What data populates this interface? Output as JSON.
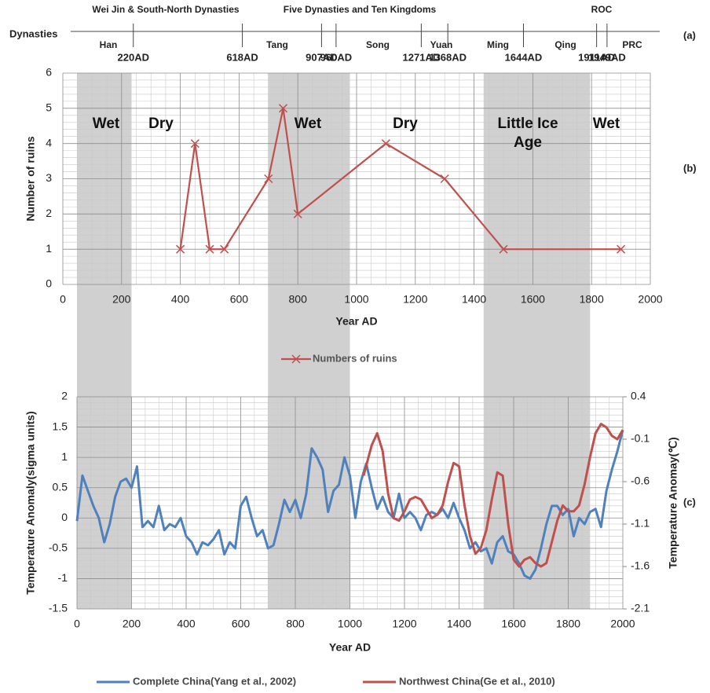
{
  "chart_data": [
    {
      "type": "timeline",
      "label": "Dynasties",
      "panel": "(a)",
      "xlim": [
        0,
        2150
      ],
      "xticks": [
        {
          "value": 220,
          "label": "220AD"
        },
        {
          "value": 618,
          "label": "618AD"
        },
        {
          "value": 907,
          "label": "907AD"
        },
        {
          "value": 960,
          "label": "960AD"
        },
        {
          "value": 1271,
          "label": "1271AD"
        },
        {
          "value": 1368,
          "label": "1368AD"
        },
        {
          "value": 1644,
          "label": "1644AD"
        },
        {
          "value": 1911,
          "label": "1911AD"
        },
        {
          "value": 1949,
          "label": "1949AD"
        }
      ],
      "above": [
        "Wei Jin & South-North Dynasties",
        "Five Dynasties and Ten Kingdoms",
        "ROC"
      ],
      "below": [
        "Han",
        "Tang",
        "Song",
        "Yuan",
        "Ming",
        "Qing",
        "PRC"
      ]
    },
    {
      "type": "line",
      "panel": "(b)",
      "x_label": "Year AD",
      "y_label": "Number of ruins",
      "xlim": [
        0,
        2000
      ],
      "xticks": [
        0,
        200,
        400,
        600,
        800,
        1000,
        1200,
        1400,
        1600,
        1800,
        2000
      ],
      "ylim": [
        0,
        6
      ],
      "yticks": [
        0,
        1,
        2,
        3,
        4,
        5,
        6
      ],
      "grid": true,
      "annotations": [
        "Wet",
        "Dry",
        "Wet",
        "Dry",
        "Little Ice Age",
        "Wet"
      ],
      "series": [
        {
          "name": "Numbers of ruins",
          "color": "#c0504d",
          "x": [
            400,
            450,
            500,
            550,
            700,
            750,
            800,
            1100,
            1300,
            1500,
            1900
          ],
          "values": [
            1,
            4,
            1,
            1,
            3,
            5,
            2,
            4,
            3,
            1,
            1
          ]
        }
      ]
    },
    {
      "type": "line",
      "panel": "(c)",
      "x_label": "Year AD",
      "y_label": "Temperature Anomaly(sigma units)",
      "y2_label": "Temperature Anomay(℃)",
      "xlim": [
        0,
        2000
      ],
      "xticks": [
        0,
        200,
        400,
        600,
        800,
        1000,
        1200,
        1400,
        1600,
        1800,
        2000
      ],
      "ylim": [
        -1.5,
        2
      ],
      "yticks": [
        -1.5,
        -1,
        -0.5,
        0,
        0.5,
        1,
        1.5,
        2
      ],
      "y2lim": [
        -2.1,
        0.4
      ],
      "y2ticks": [
        -2.1,
        -1.6,
        -1.1,
        -0.6,
        -0.1,
        0.4
      ],
      "grid": true,
      "shaded": [
        [
          0,
          200
        ],
        [
          700,
          1000
        ],
        [
          1490,
          1880
        ]
      ],
      "series": [
        {
          "name": "Complete China(Yang et al., 2002)",
          "color": "#4f81bd",
          "x": [
            0,
            20,
            40,
            60,
            80,
            100,
            120,
            140,
            160,
            180,
            200,
            220,
            240,
            260,
            280,
            300,
            320,
            340,
            360,
            380,
            400,
            420,
            440,
            460,
            480,
            500,
            520,
            540,
            560,
            580,
            600,
            620,
            640,
            660,
            680,
            700,
            720,
            740,
            760,
            780,
            800,
            820,
            840,
            860,
            880,
            900,
            920,
            940,
            960,
            980,
            1000,
            1020,
            1040,
            1060,
            1080,
            1100,
            1120,
            1140,
            1160,
            1180,
            1200,
            1220,
            1240,
            1260,
            1280,
            1300,
            1320,
            1340,
            1360,
            1380,
            1400,
            1420,
            1440,
            1460,
            1480,
            1500,
            1520,
            1540,
            1560,
            1580,
            1600,
            1620,
            1640,
            1660,
            1680,
            1700,
            1720,
            1740,
            1760,
            1780,
            1800,
            1820,
            1840,
            1860,
            1880,
            1900,
            1920,
            1940,
            1960,
            1980,
            2000
          ],
          "values": [
            -0.05,
            0.7,
            0.45,
            0.2,
            0.0,
            -0.4,
            -0.1,
            0.35,
            0.6,
            0.65,
            0.5,
            0.85,
            -0.15,
            -0.05,
            -0.15,
            0.2,
            -0.2,
            -0.1,
            -0.15,
            0.0,
            -0.3,
            -0.4,
            -0.6,
            -0.4,
            -0.45,
            -0.35,
            -0.2,
            -0.6,
            -0.4,
            -0.5,
            0.2,
            0.35,
            0.0,
            -0.3,
            -0.2,
            -0.5,
            -0.45,
            -0.1,
            0.3,
            0.1,
            0.3,
            0.0,
            0.4,
            1.15,
            1.0,
            0.8,
            0.1,
            0.45,
            0.55,
            1.0,
            0.7,
            0.0,
            0.6,
            0.9,
            0.5,
            0.15,
            0.35,
            0.1,
            0.0,
            0.4,
            0.0,
            0.1,
            0.0,
            -0.2,
            0.05,
            0.1,
            0.05,
            0.15,
            0.0,
            0.25,
            0.0,
            -0.2,
            -0.5,
            -0.4,
            -0.55,
            -0.5,
            -0.75,
            -0.4,
            -0.3,
            -0.55,
            -0.6,
            -0.75,
            -0.95,
            -1.0,
            -0.85,
            -0.5,
            -0.1,
            0.2,
            0.2,
            0.05,
            0.15,
            -0.3,
            0.0,
            -0.1,
            0.1,
            0.15,
            -0.15,
            0.45,
            0.8,
            1.1,
            1.45
          ]
        },
        {
          "name": "Northwest China(Ge et al., 2010)",
          "color": "#c0504d",
          "axis": "y2",
          "x": [
            1050,
            1080,
            1100,
            1120,
            1140,
            1160,
            1180,
            1200,
            1220,
            1240,
            1260,
            1280,
            1300,
            1320,
            1340,
            1360,
            1380,
            1400,
            1420,
            1440,
            1460,
            1480,
            1500,
            1520,
            1540,
            1560,
            1580,
            1600,
            1620,
            1640,
            1660,
            1680,
            1700,
            1720,
            1740,
            1760,
            1780,
            1800,
            1820,
            1840,
            1860,
            1880,
            1900,
            1920,
            1940,
            1960,
            1980,
            2000
          ],
          "values": [
            -0.53,
            -0.17,
            -0.03,
            -0.24,
            -0.74,
            -1.03,
            -1.06,
            -0.95,
            -0.81,
            -0.78,
            -0.81,
            -0.92,
            -1.03,
            -0.99,
            -0.88,
            -0.6,
            -0.38,
            -0.42,
            -0.88,
            -1.24,
            -1.45,
            -1.38,
            -1.17,
            -0.81,
            -0.49,
            -0.53,
            -1.1,
            -1.52,
            -1.6,
            -1.52,
            -1.49,
            -1.56,
            -1.6,
            -1.56,
            -1.31,
            -1.06,
            -0.88,
            -0.95,
            -0.95,
            -0.88,
            -0.63,
            -0.31,
            -0.03,
            0.08,
            0.04,
            -0.06,
            -0.1,
            0.01
          ]
        }
      ]
    }
  ]
}
